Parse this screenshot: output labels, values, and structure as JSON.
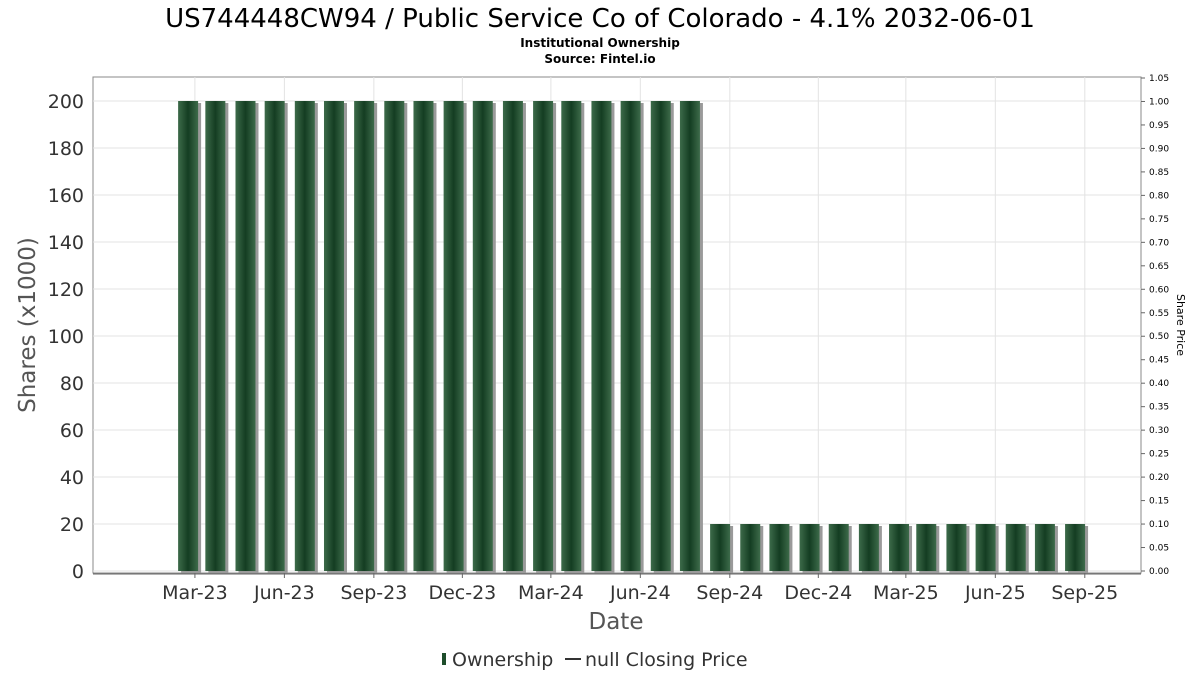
{
  "chart_data": {
    "type": "bar",
    "title": "US744448CW94 / Public Service Co of Colorado - 4.1% 2032-06-01",
    "subtitle_lines": [
      "Institutional Ownership",
      "Source: Fintel.io"
    ],
    "xlabel": "Date",
    "ylabel": "Shares (x1000)",
    "y2label": "Share Price",
    "x_ticks": [
      "Mar-23",
      "Jun-23",
      "Sep-23",
      "Dec-23",
      "Mar-24",
      "Jun-24",
      "Sep-24",
      "Dec-24",
      "Mar-25",
      "Jun-25",
      "Sep-25"
    ],
    "y_ticks": [
      "0",
      "20",
      "40",
      "60",
      "80",
      "100",
      "120",
      "140",
      "160",
      "180",
      "200"
    ],
    "y2_ticks": [
      "0.00",
      "0.05",
      "0.10",
      "0.15",
      "0.20",
      "0.25",
      "0.30",
      "0.35",
      "0.40",
      "0.45",
      "0.50",
      "0.55",
      "0.60",
      "0.65",
      "0.70",
      "0.75",
      "0.80",
      "0.85",
      "0.90",
      "0.95",
      "1.00",
      "1.05"
    ],
    "ylim": [
      0,
      200
    ],
    "y2lim": [
      0,
      1.05
    ],
    "grid": true,
    "x_range_months": [
      "2022-12-15",
      "2025-09-30"
    ],
    "series": [
      {
        "name": "Ownership",
        "color": "#1e4d2b",
        "dates": [
          "2023-02-22",
          "2023-03-22",
          "2023-04-22",
          "2023-05-22",
          "2023-06-22",
          "2023-07-22",
          "2023-08-22",
          "2023-09-22",
          "2023-10-22",
          "2023-11-22",
          "2023-12-22",
          "2024-01-22",
          "2024-02-22",
          "2024-03-22",
          "2024-04-22",
          "2024-05-22",
          "2024-06-22",
          "2024-07-22",
          "2024-08-22",
          "2024-09-22",
          "2024-10-22",
          "2024-11-22",
          "2024-12-22",
          "2025-01-22",
          "2025-02-22",
          "2025-03-22",
          "2025-04-22",
          "2025-05-22",
          "2025-06-22",
          "2025-07-22",
          "2025-08-22"
        ],
        "values": [
          200,
          200,
          200,
          200,
          200,
          200,
          200,
          200,
          200,
          200,
          200,
          200,
          200,
          200,
          200,
          200,
          200,
          200,
          20,
          20,
          20,
          20,
          20,
          20,
          20,
          20,
          20,
          20,
          20,
          20,
          20
        ]
      }
    ],
    "legend": {
      "position": "bottom",
      "entries": [
        "Ownership",
        "null Closing Price"
      ]
    }
  }
}
